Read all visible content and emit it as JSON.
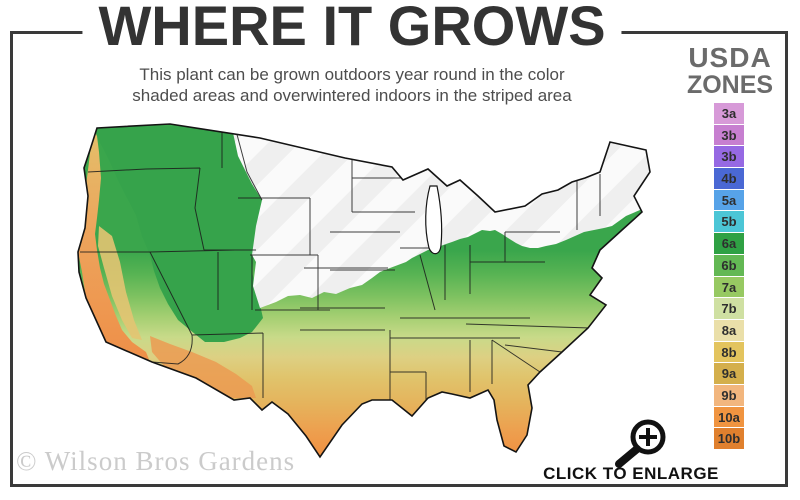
{
  "header": {
    "title": "WHERE IT GROWS",
    "subtitle_line1": "This plant can be grown outdoors year round in the color",
    "subtitle_line2": "shaded areas and overwintered indoors in the striped area"
  },
  "legend": {
    "title_line1": "USDA",
    "title_line2": "ZONES",
    "zones": [
      {
        "label": "3a",
        "color": "#d79ad8"
      },
      {
        "label": "3b",
        "color": "#c77fd0"
      },
      {
        "label": "3b",
        "color": "#9669e3"
      },
      {
        "label": "4b",
        "color": "#4a68d4"
      },
      {
        "label": "5a",
        "color": "#57a3e8"
      },
      {
        "label": "5b",
        "color": "#4cc6d6"
      },
      {
        "label": "6a",
        "color": "#2fa144"
      },
      {
        "label": "6b",
        "color": "#63b854"
      },
      {
        "label": "7a",
        "color": "#97c962"
      },
      {
        "label": "7b",
        "color": "#cfe0a2"
      },
      {
        "label": "8a",
        "color": "#eadfa9"
      },
      {
        "label": "8b",
        "color": "#e3c45e"
      },
      {
        "label": "9a",
        "color": "#d4af4c"
      },
      {
        "label": "9b",
        "color": "#f2b67e"
      },
      {
        "label": "10a",
        "color": "#f09440"
      },
      {
        "label": "10b",
        "color": "#e0802e"
      }
    ]
  },
  "map": {
    "unshaded_zone_color": "#efefef",
    "stripe_color": "#fafafa",
    "outline_color": "#141414"
  },
  "footer": {
    "click_to_enlarge_label": "CLICK TO ENLARGE",
    "watermark": "© Wilson Bros Gardens"
  }
}
